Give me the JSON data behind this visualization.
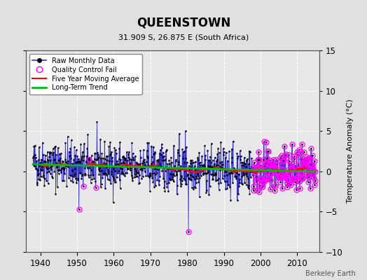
{
  "title": "QUEENSTOWN",
  "subtitle": "31.909 S, 26.875 E (South Africa)",
  "ylabel": "Temperature Anomaly (°C)",
  "credit": "Berkeley Earth",
  "xlim": [
    1936,
    2016
  ],
  "ylim": [
    -10,
    15
  ],
  "yticks": [
    -10,
    -5,
    0,
    5,
    10,
    15
  ],
  "xticks": [
    1940,
    1950,
    1960,
    1970,
    1980,
    1990,
    2000,
    2010
  ],
  "bg_color": "#e0e0e0",
  "plot_bg_color": "#e8e8e8",
  "raw_line_color": "#3333cc",
  "raw_dot_color": "#000000",
  "qc_fail_color": "#ff00ff",
  "moving_avg_color": "#ff0000",
  "trend_color": "#00bb00",
  "seed": 42,
  "start_year": 1938,
  "end_year": 2014
}
